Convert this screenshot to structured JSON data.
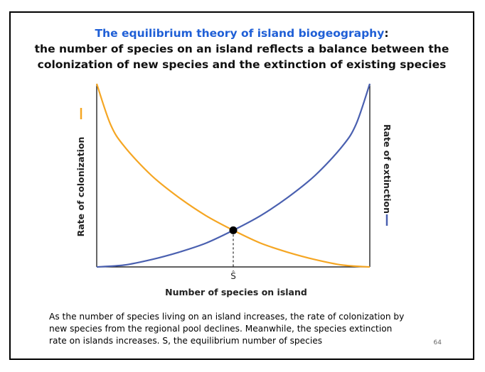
{
  "slide": {
    "title_line1_main": "The equilibrium theory of island biogeography",
    "title_line1_colon": ":",
    "title_line2": "the number of species on an island reflects a balance between the",
    "title_line3": "colonization of new species and the extinction of existing species",
    "caption": "As the number of species living on an island increases, the rate of colonization by new species from the regional pool declines. Meanwhile, the species extinction rate on islands increases. S, the equilibrium number of species",
    "page_number": "64"
  },
  "chart_data": {
    "type": "line",
    "title": "",
    "xlabel": "Number of species on island",
    "ylabel_left": "Rate of colonization",
    "ylabel_right": "Rate of extinction",
    "x_tick_labels": [
      "Ŝ"
    ],
    "xlim": [
      0,
      1
    ],
    "ylim": [
      0,
      1
    ],
    "grid": false,
    "legend": "axis-label color keys",
    "series": [
      {
        "name": "Rate of colonization",
        "color": "#f5a623",
        "x": [
          0,
          0.05,
          0.1,
          0.2,
          0.3,
          0.4,
          0.5,
          0.6,
          0.7,
          0.8,
          0.9,
          1.0
        ],
        "y": [
          1.0,
          0.78,
          0.66,
          0.5,
          0.38,
          0.28,
          0.2,
          0.13,
          0.08,
          0.04,
          0.01,
          0.0
        ]
      },
      {
        "name": "Rate of extinction",
        "color": "#4a60b0",
        "x": [
          0,
          0.1,
          0.2,
          0.3,
          0.4,
          0.5,
          0.6,
          0.7,
          0.8,
          0.9,
          0.95,
          1.0
        ],
        "y": [
          0.0,
          0.01,
          0.04,
          0.08,
          0.13,
          0.2,
          0.28,
          0.38,
          0.5,
          0.66,
          0.78,
          1.0
        ]
      }
    ],
    "equilibrium": {
      "x": 0.5,
      "y": 0.2,
      "label": "Ŝ"
    }
  }
}
